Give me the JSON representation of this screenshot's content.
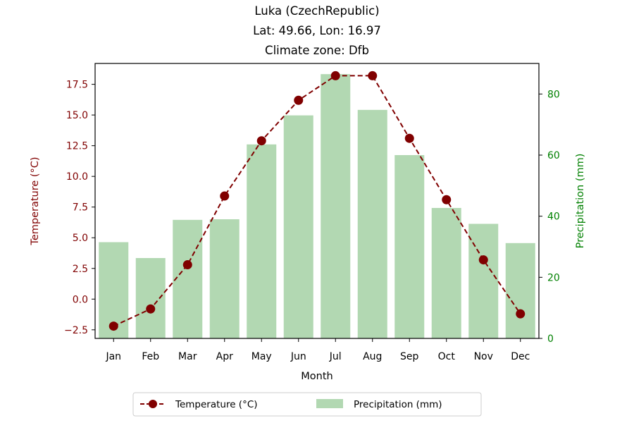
{
  "chart_data": {
    "type": "bar",
    "title": [
      "Luka (CzechRepublic)",
      "Lat: 49.66, Lon: 16.97",
      "Climate zone: Dfb"
    ],
    "xlabel": "Month",
    "categories": [
      "Jan",
      "Feb",
      "Mar",
      "Apr",
      "May",
      "Jun",
      "Jul",
      "Aug",
      "Sep",
      "Oct",
      "Nov",
      "Dec"
    ],
    "left_axis": {
      "label": "Temperature (°C)",
      "color": "#800000",
      "ylim": [
        -3.2,
        19.2
      ],
      "ticks": [
        -2.5,
        0.0,
        2.5,
        5.0,
        7.5,
        10.0,
        12.5,
        15.0,
        17.5
      ],
      "tick_labels": [
        "−2.5",
        "0.0",
        "2.5",
        "5.0",
        "7.5",
        "10.0",
        "12.5",
        "15.0",
        "17.5"
      ]
    },
    "right_axis": {
      "label": "Precipitation (mm)",
      "color": "#008000",
      "ylim": [
        0,
        90
      ],
      "ticks": [
        0,
        20,
        40,
        60,
        80
      ],
      "tick_labels": [
        "0",
        "20",
        "40",
        "60",
        "80"
      ]
    },
    "series": [
      {
        "name": "Temperature (°C)",
        "type": "line",
        "axis": "left",
        "style": "dashed with circle markers",
        "color": "#800000",
        "values": [
          -2.2,
          -0.8,
          2.8,
          8.4,
          12.9,
          16.2,
          18.2,
          18.2,
          13.1,
          8.1,
          3.2,
          -1.2
        ]
      },
      {
        "name": "Precipitation (mm)",
        "type": "bar",
        "axis": "right",
        "color": "#b2d8b2",
        "values": [
          31.5,
          26.3,
          38.8,
          39.0,
          63.5,
          73.0,
          86.5,
          74.8,
          60.0,
          42.7,
          37.5,
          31.2
        ]
      }
    ],
    "legend": {
      "placement": "bottom-center"
    },
    "grid": false
  }
}
